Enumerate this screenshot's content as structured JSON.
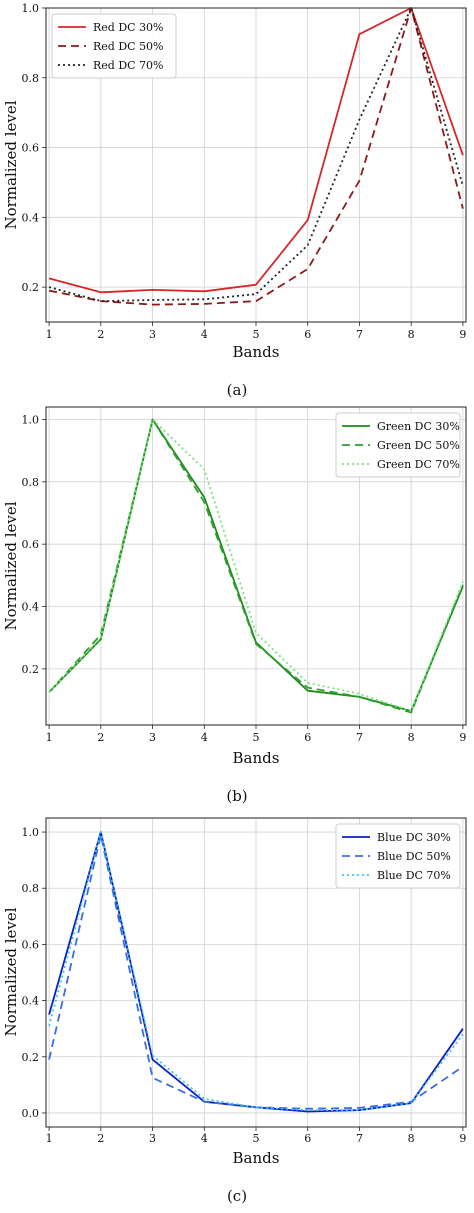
{
  "chart_data": [
    {
      "type": "line",
      "caption": "(a)",
      "xlabel": "Bands",
      "ylabel": "Normalized level",
      "x": [
        1,
        2,
        3,
        4,
        5,
        6,
        7,
        8,
        9
      ],
      "x_ticks": [
        "1",
        "2",
        "3",
        "4",
        "5",
        "6",
        "7",
        "8",
        "9"
      ],
      "ylim": [
        0.1,
        1.0
      ],
      "y_ticks": [
        "0.2",
        "0.4",
        "0.6",
        "0.8",
        "1.0"
      ],
      "grid": true,
      "legend_position": "top-left",
      "series": [
        {
          "name": "Red DC 30%",
          "color": "#d62728",
          "dash": "solid",
          "values": [
            0.225,
            0.185,
            0.192,
            0.188,
            0.207,
            0.392,
            0.925,
            1.0,
            0.578
          ]
        },
        {
          "name": "Red DC 50%",
          "color": "#8b1a1a",
          "dash": "dashed",
          "values": [
            0.19,
            0.16,
            0.15,
            0.152,
            0.16,
            0.252,
            0.505,
            1.0,
            0.425
          ]
        },
        {
          "name": "Red DC 70%",
          "color": "#222222",
          "dash": "dotted",
          "values": [
            0.2,
            0.16,
            0.163,
            0.165,
            0.18,
            0.32,
            0.68,
            1.0,
            0.49
          ]
        }
      ]
    },
    {
      "type": "line",
      "caption": "(b)",
      "xlabel": "Bands",
      "ylabel": "Normalized level",
      "x": [
        1,
        2,
        3,
        4,
        5,
        6,
        7,
        8,
        9
      ],
      "x_ticks": [
        "1",
        "2",
        "3",
        "4",
        "5",
        "6",
        "7",
        "8",
        "9"
      ],
      "ylim": [
        0.02,
        1.04
      ],
      "y_ticks": [
        "0.2",
        "0.4",
        "0.6",
        "0.8",
        "1.0"
      ],
      "grid": true,
      "legend_position": "top-right",
      "series": [
        {
          "name": "Green DC 30%",
          "color": "#1e8c1e",
          "dash": "solid",
          "values": [
            0.125,
            0.295,
            1.0,
            0.75,
            0.285,
            0.13,
            0.11,
            0.065,
            0.465
          ]
        },
        {
          "name": "Green DC 50%",
          "color": "#2ca02c",
          "dash": "dashed",
          "values": [
            0.125,
            0.31,
            1.0,
            0.735,
            0.28,
            0.14,
            0.11,
            0.06,
            0.47
          ]
        },
        {
          "name": "Green DC 70%",
          "color": "#7ee07e",
          "dash": "dotted",
          "values": [
            0.125,
            0.3,
            1.0,
            0.84,
            0.315,
            0.155,
            0.12,
            0.065,
            0.48
          ]
        }
      ]
    },
    {
      "type": "line",
      "caption": "(c)",
      "xlabel": "Bands",
      "ylabel": "Normalized level",
      "x": [
        1,
        2,
        3,
        4,
        5,
        6,
        7,
        8,
        9
      ],
      "x_ticks": [
        "1",
        "2",
        "3",
        "4",
        "5",
        "6",
        "7",
        "8",
        "9"
      ],
      "ylim": [
        -0.05,
        1.05
      ],
      "y_ticks": [
        "0.0",
        "0.2",
        "0.4",
        "0.6",
        "0.8",
        "1.0"
      ],
      "grid": true,
      "legend_position": "top-right",
      "series": [
        {
          "name": "Blue DC 30%",
          "color": "#0b1fc4",
          "dash": "solid",
          "values": [
            0.35,
            1.0,
            0.19,
            0.04,
            0.02,
            0.005,
            0.01,
            0.035,
            0.3
          ]
        },
        {
          "name": "Blue DC 50%",
          "color": "#3a6ee0",
          "dash": "dashed",
          "values": [
            0.19,
            0.99,
            0.125,
            0.04,
            0.02,
            0.015,
            0.018,
            0.04,
            0.165
          ]
        },
        {
          "name": "Blue DC 70%",
          "color": "#34c8f0",
          "dash": "dotted",
          "values": [
            0.31,
            1.0,
            0.205,
            0.05,
            0.02,
            0.01,
            0.01,
            0.035,
            0.28
          ]
        }
      ]
    }
  ]
}
